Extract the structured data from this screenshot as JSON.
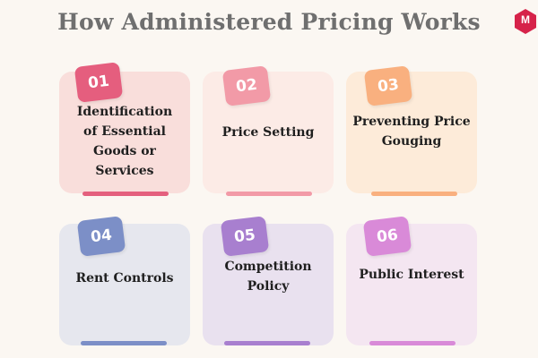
{
  "title": "How Administered Pricing Works",
  "logo": {
    "letter": "M",
    "color": "#d6234a"
  },
  "cards": [
    {
      "number": "01",
      "label": "Identification of Essential Goods or Services",
      "card_color": "#f9dedb",
      "badge_color": "#e55e7e",
      "bar_color": "#e4607e"
    },
    {
      "number": "02",
      "label": "Price Setting",
      "card_color": "#fcebe6",
      "badge_color": "#f29aa7",
      "bar_color": "#f29aa7"
    },
    {
      "number": "03",
      "label": "Preventing Price Gouging",
      "card_color": "#fdebd9",
      "badge_color": "#f9b07f",
      "bar_color": "#f9b07f"
    },
    {
      "number": "04",
      "label": "Rent Controls",
      "card_color": "#e6e7ee",
      "badge_color": "#7c8fc7",
      "bar_color": "#7c8fc7"
    },
    {
      "number": "05",
      "label": "Competition Policy",
      "card_color": "#e9e1ef",
      "badge_color": "#a87fcf",
      "bar_color": "#a87fcf"
    },
    {
      "number": "06",
      "label": "Public Interest",
      "card_color": "#f4e6f1",
      "badge_color": "#d98ad8",
      "bar_color": "#d98ad8"
    }
  ]
}
